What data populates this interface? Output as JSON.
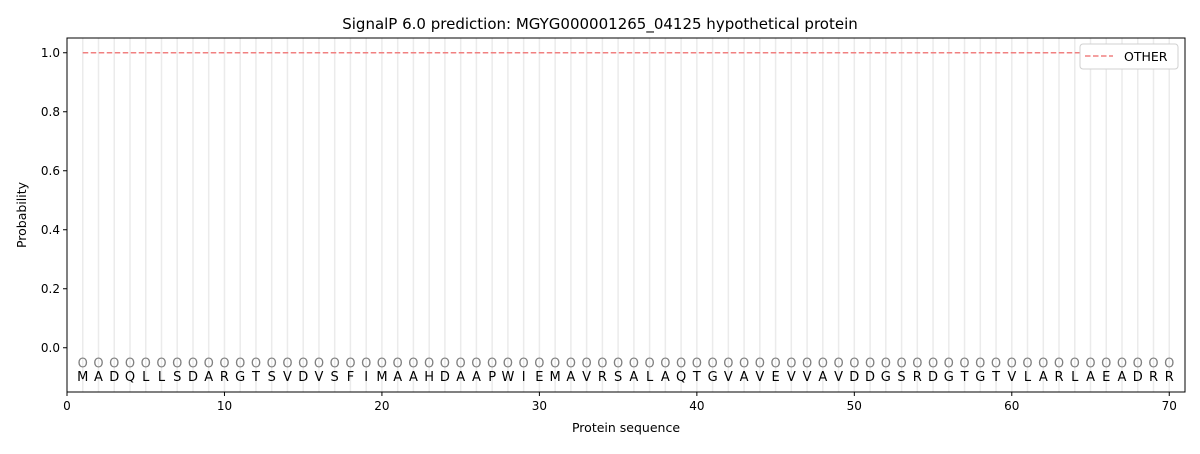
{
  "chart_data": {
    "type": "line",
    "title": "SignalP 6.0 prediction: MGYG000001265_04125 hypothetical protein",
    "xlabel": "Protein sequence",
    "ylabel": "Probability",
    "xlim": [
      0,
      71
    ],
    "ylim": [
      -0.15,
      1.05
    ],
    "xticks": [
      0,
      10,
      20,
      30,
      40,
      50,
      60,
      70
    ],
    "yticks": [
      0.0,
      0.2,
      0.4,
      0.6,
      0.8,
      1.0
    ],
    "ytick_labels": [
      "0.0",
      "0.2",
      "0.4",
      "0.6",
      "0.8",
      "1.0"
    ],
    "sequence": "MADQLLSDARGTSVDVSFIMAAHDAAPWIEMAVRSALAQTGVAVEVVAVDDGSRDGTGTVLARLAEADRR",
    "position_label": "O",
    "series": [
      {
        "name": "OTHER",
        "color": "#f08080",
        "style": "dashed",
        "x_start": 1,
        "x_end": 70,
        "value": 1.0
      }
    ],
    "legend": {
      "placement": "top-right",
      "entries": [
        "OTHER"
      ]
    },
    "grid": "vertical lines at each residue"
  }
}
